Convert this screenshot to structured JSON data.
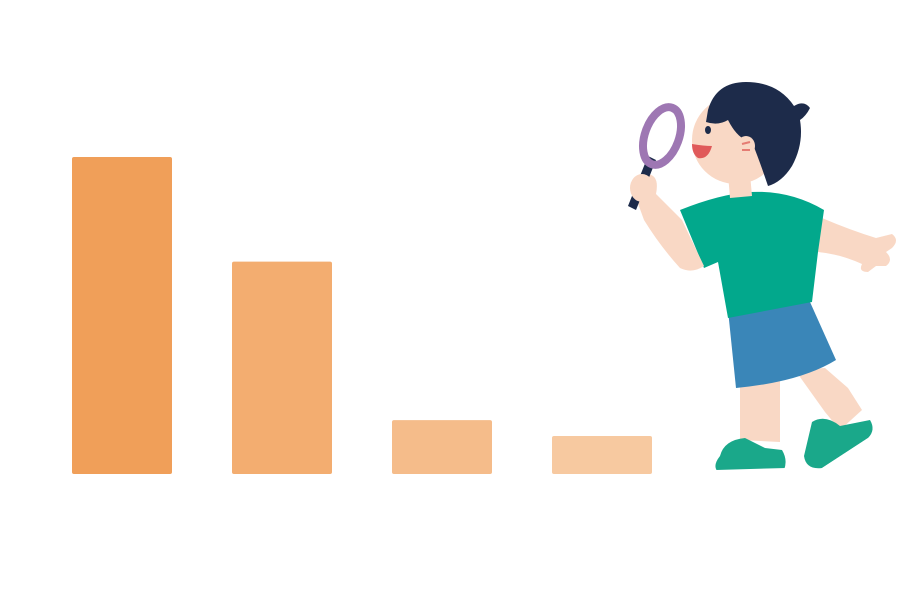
{
  "chart_data": {
    "type": "bar",
    "title": "",
    "xlabel": "",
    "ylabel": "",
    "categories": [
      "",
      "",
      "",
      ""
    ],
    "values": [
      100,
      67,
      17,
      12
    ],
    "ylim": [
      0,
      100
    ],
    "colors": [
      "#F09F59",
      "#F3AD70",
      "#F5BC8A",
      "#F7C9A0"
    ],
    "grid": false,
    "legend": "none"
  },
  "illustration": {
    "icon": "child-with-magnifying-glass-icon",
    "colors": {
      "skin": "#F9D8C5",
      "hair": "#1D2B4A",
      "shirt": "#02A88C",
      "shorts": "#3A86B8",
      "shoes": "#1AA88A",
      "magnifier": "#9E77B3",
      "mouth": "#E05A5A"
    }
  }
}
